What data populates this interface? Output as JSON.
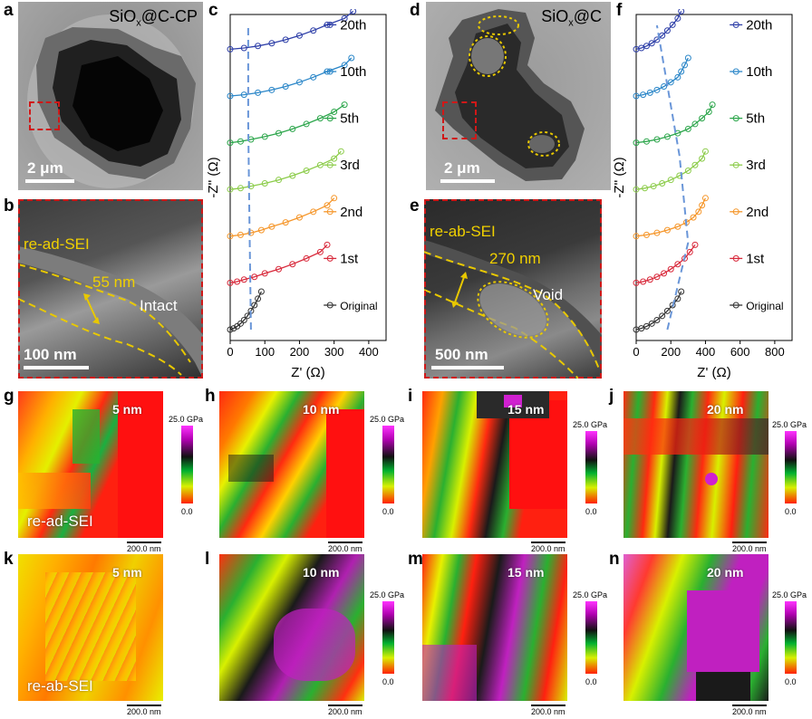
{
  "panel_labels": {
    "a": "a",
    "b": "b",
    "c": "c",
    "d": "d",
    "e": "e",
    "f": "f",
    "g": "g",
    "h": "h",
    "i": "i",
    "j": "j",
    "k": "k",
    "l": "l",
    "m": "m",
    "n": "n"
  },
  "panel_a": {
    "title_main": "SiO",
    "title_sub": "x",
    "title_rest": "@C-CP",
    "scale": "2 μm"
  },
  "panel_b": {
    "sei": "re-ad-SEI",
    "thickness": "55 nm",
    "state": "Intact",
    "scale": "100 nm"
  },
  "panel_d": {
    "title_main": "SiO",
    "title_sub": "x",
    "title_rest": "@C",
    "scale": "2 μm"
  },
  "panel_e": {
    "sei": "re-ab-SEI",
    "thickness": "270 nm",
    "state": "Void",
    "scale": "500 nm"
  },
  "maps": {
    "depths": {
      "g": "5 nm",
      "h": "10 nm",
      "i": "15 nm",
      "j": "20 nm",
      "k": "5 nm",
      "l": "10 nm",
      "m": "15 nm",
      "n": "20 nm"
    },
    "colorbar_max": "25.0 GPa",
    "colorbar_min": "0.0",
    "scale": "200.0 nm",
    "row1_label": "re-ad-SEI",
    "row2_label": "re-ab-SEI"
  },
  "chart_data": [
    {
      "panel": "c",
      "type": "line",
      "title": "",
      "xlabel": "Z' (Ω)",
      "ylabel": "-Z'' (Ω)",
      "xlim": [
        0,
        450
      ],
      "x_ticks": [
        "0",
        "100",
        "200",
        "300",
        "400"
      ],
      "series": [
        {
          "name": "20th",
          "color": "#2e3fa8",
          "x": [
            0,
            40,
            80,
            120,
            160,
            200,
            240,
            280,
            330,
            355
          ],
          "y_offset": 6
        },
        {
          "name": "10th",
          "color": "#2a86c8",
          "x": [
            0,
            40,
            80,
            120,
            160,
            200,
            240,
            280,
            330,
            350
          ],
          "y_offset": 5
        },
        {
          "name": "5th",
          "color": "#2da64c",
          "x": [
            0,
            30,
            60,
            100,
            140,
            180,
            220,
            260,
            300,
            330
          ],
          "y_offset": 4
        },
        {
          "name": "3rd",
          "color": "#8ccc4a",
          "x": [
            0,
            30,
            60,
            100,
            140,
            180,
            220,
            260,
            300,
            320
          ],
          "y_offset": 3
        },
        {
          "name": "2nd",
          "color": "#f5962a",
          "x": [
            0,
            30,
            60,
            90,
            120,
            160,
            200,
            240,
            280,
            300
          ],
          "y_offset": 2
        },
        {
          "name": "1st",
          "color": "#d8283a",
          "x": [
            0,
            20,
            40,
            70,
            100,
            140,
            180,
            220,
            260,
            280
          ],
          "y_offset": 1
        },
        {
          "name": "Original",
          "color": "#333333",
          "x": [
            0,
            10,
            20,
            30,
            40,
            50,
            60,
            70,
            80,
            90
          ],
          "y_offset": 0
        }
      ]
    },
    {
      "panel": "f",
      "type": "line",
      "title": "",
      "xlabel": "Z' (Ω)",
      "ylabel": "-Z'' (Ω)",
      "xlim": [
        0,
        900
      ],
      "x_ticks": [
        "0",
        "200",
        "400",
        "600",
        "800"
      ],
      "series": [
        {
          "name": "20th",
          "color": "#2e3fa8",
          "x": [
            0,
            30,
            60,
            90,
            120,
            150,
            180,
            210,
            240,
            260
          ],
          "y_offset": 6
        },
        {
          "name": "10th",
          "color": "#2a86c8",
          "x": [
            0,
            40,
            80,
            120,
            160,
            200,
            240,
            260,
            280,
            300
          ],
          "y_offset": 5
        },
        {
          "name": "5th",
          "color": "#2da64c",
          "x": [
            0,
            60,
            120,
            180,
            240,
            300,
            340,
            380,
            420,
            440
          ],
          "y_offset": 4
        },
        {
          "name": "3rd",
          "color": "#8ccc4a",
          "x": [
            0,
            50,
            100,
            150,
            200,
            250,
            300,
            340,
            380,
            400
          ],
          "y_offset": 3
        },
        {
          "name": "2nd",
          "color": "#f5962a",
          "x": [
            0,
            60,
            120,
            180,
            240,
            290,
            330,
            360,
            380,
            400
          ],
          "y_offset": 2
        },
        {
          "name": "1st",
          "color": "#d8283a",
          "x": [
            0,
            40,
            80,
            120,
            160,
            200,
            240,
            280,
            310,
            340
          ],
          "y_offset": 1
        },
        {
          "name": "Original",
          "color": "#333333",
          "x": [
            0,
            30,
            60,
            90,
            120,
            150,
            180,
            210,
            240,
            260
          ],
          "y_offset": 0
        }
      ]
    }
  ]
}
